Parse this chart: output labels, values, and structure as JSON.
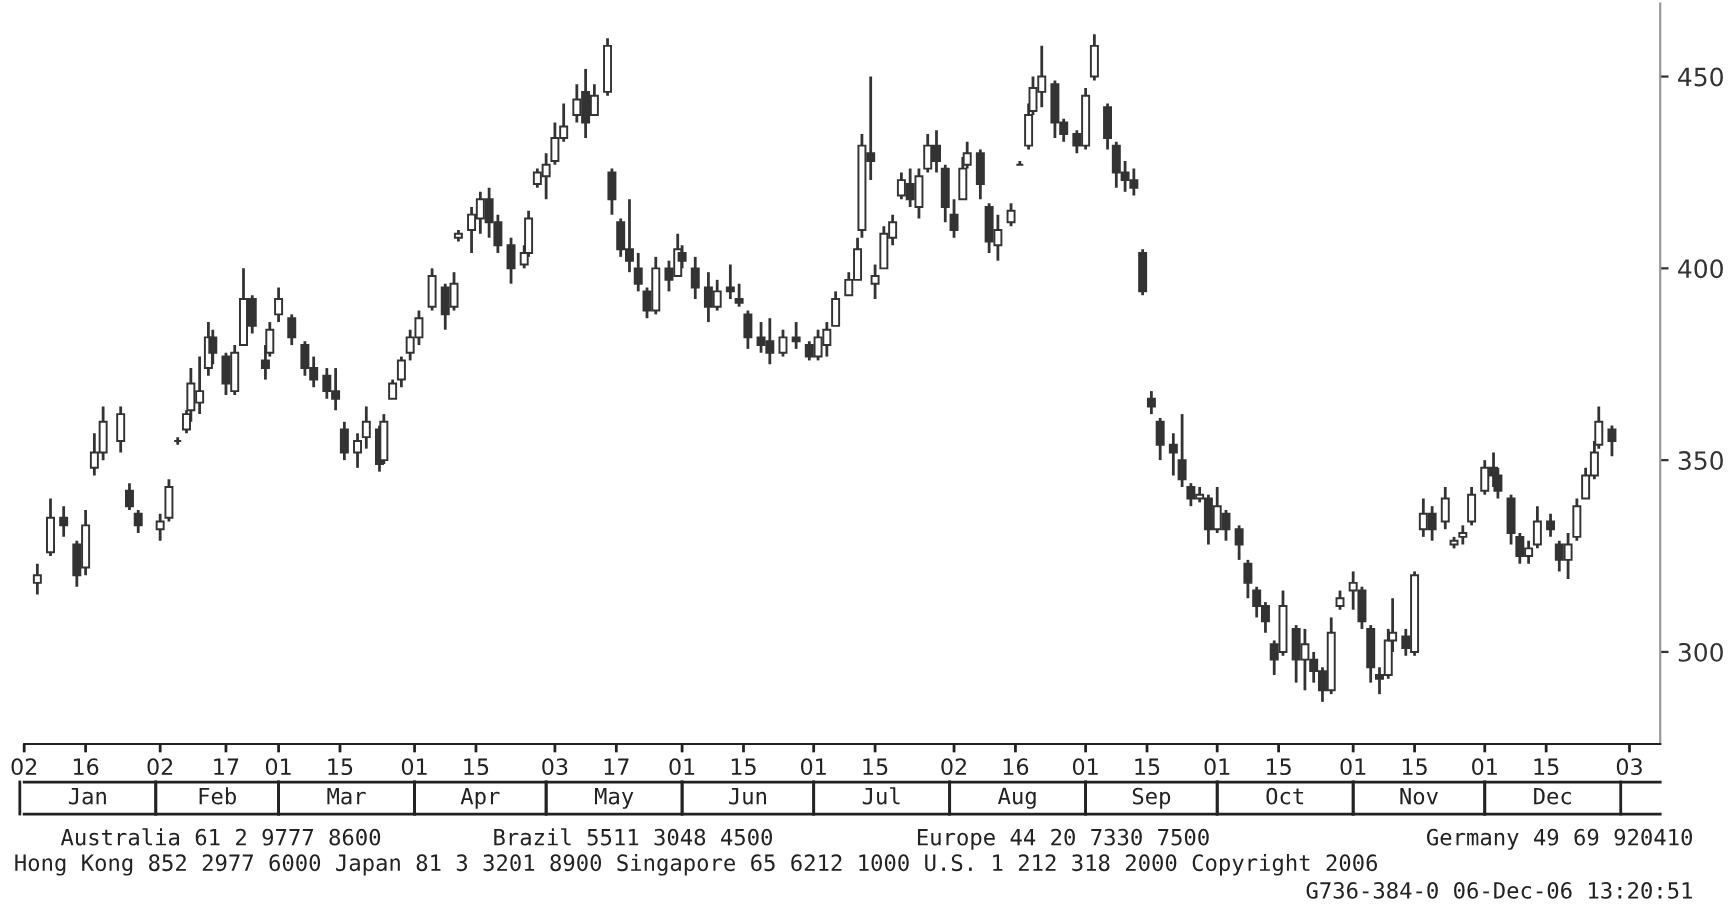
{
  "chart_data": {
    "type": "candlestick",
    "x": [
      "2006-01-05",
      "2006-01-08",
      "2006-01-11",
      "2006-01-14",
      "2006-01-16",
      "2006-01-18",
      "2006-01-20",
      "2006-01-24",
      "2006-01-26",
      "2006-01-28",
      "2006-02-02",
      "2006-02-04",
      "2006-02-06",
      "2006-02-08",
      "2006-02-09",
      "2006-02-11",
      "2006-02-13",
      "2006-02-14",
      "2006-02-17",
      "2006-02-19",
      "2006-02-21",
      "2006-02-23",
      "2006-02-26",
      "2006-02-27",
      "2006-03-01",
      "2006-03-04",
      "2006-03-07",
      "2006-03-09",
      "2006-03-12",
      "2006-03-14",
      "2006-03-16",
      "2006-03-19",
      "2006-03-21",
      "2006-03-24",
      "2006-03-25",
      "2006-03-27",
      "2006-03-29",
      "2006-03-31",
      "2006-04-02",
      "2006-04-05",
      "2006-04-08",
      "2006-04-10",
      "2006-04-11",
      "2006-04-14",
      "2006-04-16",
      "2006-04-18",
      "2006-04-20",
      "2006-04-23",
      "2006-04-26",
      "2006-04-27",
      "2006-04-29",
      "2006-05-01",
      "2006-05-03",
      "2006-05-05",
      "2006-05-08",
      "2006-05-10",
      "2006-05-12",
      "2006-05-15",
      "2006-05-16",
      "2006-05-18",
      "2006-05-20",
      "2006-05-22",
      "2006-05-24",
      "2006-05-26",
      "2006-05-29",
      "2006-05-31",
      "2006-06-01",
      "2006-06-04",
      "2006-06-07",
      "2006-06-09",
      "2006-06-12",
      "2006-06-14",
      "2006-06-16",
      "2006-06-19",
      "2006-06-21",
      "2006-06-24",
      "2006-06-27",
      "2006-06-30",
      "2006-07-02",
      "2006-07-04",
      "2006-07-06",
      "2006-07-09",
      "2006-07-11",
      "2006-07-12",
      "2006-07-14",
      "2006-07-15",
      "2006-07-17",
      "2006-07-19",
      "2006-07-21",
      "2006-07-23",
      "2006-07-25",
      "2006-07-27",
      "2006-07-29",
      "2006-07-31",
      "2006-08-02",
      "2006-08-04",
      "2006-08-05",
      "2006-08-08",
      "2006-08-10",
      "2006-08-12",
      "2006-08-15",
      "2006-08-17",
      "2006-08-19",
      "2006-08-20",
      "2006-08-22",
      "2006-08-25",
      "2006-08-27",
      "2006-08-30",
      "2006-09-01",
      "2006-09-03",
      "2006-09-06",
      "2006-09-08",
      "2006-09-10",
      "2006-09-12",
      "2006-09-14",
      "2006-09-16",
      "2006-09-18",
      "2006-09-21",
      "2006-09-23",
      "2006-09-25",
      "2006-09-27",
      "2006-09-29",
      "2006-10-01",
      "2006-10-03",
      "2006-10-06",
      "2006-10-08",
      "2006-10-10",
      "2006-10-12",
      "2006-10-14",
      "2006-10-16",
      "2006-10-19",
      "2006-10-21",
      "2006-10-23",
      "2006-10-25",
      "2006-10-27",
      "2006-10-29",
      "2006-11-01",
      "2006-11-03",
      "2006-11-05",
      "2006-11-07",
      "2006-11-09",
      "2006-11-10",
      "2006-11-13",
      "2006-11-15",
      "2006-11-17",
      "2006-11-19",
      "2006-11-22",
      "2006-11-24",
      "2006-11-26",
      "2006-11-28",
      "2006-12-01",
      "2006-12-03",
      "2006-12-04",
      "2006-12-07",
      "2006-12-09",
      "2006-12-11",
      "2006-12-13",
      "2006-12-16",
      "2006-12-18",
      "2006-12-20",
      "2006-12-22",
      "2006-12-24",
      "2006-12-26",
      "2006-12-27",
      "2006-12-30"
    ],
    "ohlc": [
      [
        318,
        323,
        315,
        320
      ],
      [
        326,
        340,
        325,
        335
      ],
      [
        335,
        338,
        330,
        333
      ],
      [
        328,
        329,
        317,
        320
      ],
      [
        322,
        337,
        320,
        333
      ],
      [
        348,
        357,
        346,
        352
      ],
      [
        352,
        364,
        350,
        360
      ],
      [
        355,
        364,
        352,
        362
      ],
      [
        342,
        344,
        337,
        338
      ],
      [
        336,
        337,
        331,
        333
      ],
      [
        332,
        336,
        329,
        334
      ],
      [
        335,
        345,
        334,
        343
      ],
      [
        355,
        356,
        354,
        355
      ],
      [
        358,
        363,
        357,
        362
      ],
      [
        363,
        374,
        360,
        370
      ],
      [
        365,
        377,
        362,
        368
      ],
      [
        374,
        386,
        372,
        382
      ],
      [
        382,
        384,
        375,
        378
      ],
      [
        377,
        378,
        367,
        370
      ],
      [
        368,
        380,
        367,
        378
      ],
      [
        380,
        400,
        380,
        392
      ],
      [
        392,
        393,
        383,
        385
      ],
      [
        376,
        380,
        371,
        374
      ],
      [
        378,
        386,
        377,
        384
      ],
      [
        388,
        395,
        386,
        392
      ],
      [
        387,
        388,
        380,
        382
      ],
      [
        380,
        381,
        372,
        374
      ],
      [
        374,
        377,
        369,
        371
      ],
      [
        372,
        374,
        366,
        368
      ],
      [
        368,
        374,
        363,
        366
      ],
      [
        358,
        360,
        350,
        352
      ],
      [
        352,
        357,
        348,
        355
      ],
      [
        356,
        364,
        353,
        360
      ],
      [
        358,
        359,
        347,
        349
      ],
      [
        350,
        362,
        349,
        360
      ],
      [
        366,
        371,
        366,
        370
      ],
      [
        371,
        377,
        369,
        376
      ],
      [
        378,
        384,
        376,
        382
      ],
      [
        382,
        389,
        380,
        387
      ],
      [
        390,
        400,
        389,
        398
      ],
      [
        395,
        396,
        384,
        388
      ],
      [
        390,
        399,
        389,
        396
      ],
      [
        408,
        410,
        407,
        409
      ],
      [
        410,
        416,
        404,
        414
      ],
      [
        413,
        420,
        409,
        418
      ],
      [
        418,
        421,
        408,
        412
      ],
      [
        412,
        414,
        404,
        406
      ],
      [
        406,
        408,
        396,
        400
      ],
      [
        401,
        406,
        400,
        404
      ],
      [
        404,
        415,
        403,
        413
      ],
      [
        422,
        426,
        421,
        425
      ],
      [
        424,
        430,
        418,
        427
      ],
      [
        428,
        438,
        427,
        434
      ],
      [
        434,
        443,
        433,
        437
      ],
      [
        440,
        448,
        438,
        444
      ],
      [
        446,
        452,
        434,
        438
      ],
      [
        440,
        448,
        440,
        445
      ],
      [
        446,
        460,
        445,
        458
      ],
      [
        425,
        426,
        414,
        418
      ],
      [
        412,
        413,
        403,
        405
      ],
      [
        405,
        418,
        399,
        402
      ],
      [
        400,
        404,
        394,
        396
      ],
      [
        394,
        395,
        387,
        389
      ],
      [
        389,
        403,
        388,
        400
      ],
      [
        400,
        402,
        394,
        397
      ],
      [
        398,
        409,
        398,
        405
      ],
      [
        404,
        406,
        400,
        402
      ],
      [
        400,
        403,
        392,
        395
      ],
      [
        395,
        399,
        386,
        390
      ],
      [
        390,
        397,
        389,
        394
      ],
      [
        395,
        401,
        392,
        394
      ],
      [
        392,
        396,
        390,
        391
      ],
      [
        388,
        389,
        379,
        382
      ],
      [
        382,
        386,
        378,
        380
      ],
      [
        381,
        387,
        375,
        378
      ],
      [
        378,
        384,
        377,
        382
      ],
      [
        382,
        386,
        379,
        381
      ],
      [
        380,
        381,
        376,
        377
      ],
      [
        377,
        384,
        376,
        382
      ],
      [
        380,
        386,
        377,
        384
      ],
      [
        385,
        394,
        385,
        392
      ],
      [
        393,
        399,
        393,
        397
      ],
      [
        397,
        408,
        397,
        405
      ],
      [
        410,
        435,
        408,
        432
      ],
      [
        430,
        450,
        423,
        428
      ],
      [
        396,
        401,
        392,
        398
      ],
      [
        400,
        411,
        400,
        409
      ],
      [
        408,
        414,
        406,
        412
      ],
      [
        419,
        425,
        418,
        423
      ],
      [
        422,
        426,
        416,
        418
      ],
      [
        416,
        426,
        413,
        424
      ],
      [
        426,
        435,
        425,
        432
      ],
      [
        432,
        436,
        425,
        428
      ],
      [
        426,
        427,
        412,
        416
      ],
      [
        414,
        418,
        408,
        410
      ],
      [
        418,
        429,
        418,
        426
      ],
      [
        427,
        433,
        426,
        430
      ],
      [
        430,
        431,
        418,
        422
      ],
      [
        416,
        417,
        404,
        407
      ],
      [
        406,
        414,
        402,
        410
      ],
      [
        412,
        417,
        411,
        415
      ],
      [
        427,
        428,
        427,
        427
      ],
      [
        432,
        443,
        431,
        440
      ],
      [
        441,
        450,
        440,
        447
      ],
      [
        446,
        458,
        442,
        450
      ],
      [
        448,
        449,
        434,
        438
      ],
      [
        438,
        439,
        433,
        435
      ],
      [
        435,
        436,
        430,
        432
      ],
      [
        432,
        447,
        431,
        445
      ],
      [
        450,
        461,
        449,
        458
      ],
      [
        442,
        443,
        431,
        434
      ],
      [
        432,
        433,
        421,
        425
      ],
      [
        425,
        428,
        420,
        423
      ],
      [
        423,
        426,
        419,
        421
      ],
      [
        404,
        405,
        393,
        394
      ],
      [
        366,
        368,
        362,
        364
      ],
      [
        360,
        361,
        350,
        354
      ],
      [
        354,
        357,
        346,
        352
      ],
      [
        350,
        362,
        343,
        345
      ],
      [
        343,
        344,
        338,
        340
      ],
      [
        340,
        343,
        339,
        341
      ],
      [
        340,
        341,
        328,
        332
      ],
      [
        332,
        343,
        331,
        338
      ],
      [
        336,
        337,
        329,
        332
      ],
      [
        332,
        333,
        324,
        328
      ],
      [
        323,
        324,
        314,
        318
      ],
      [
        316,
        317,
        309,
        312
      ],
      [
        312,
        313,
        305,
        308
      ],
      [
        302,
        303,
        294,
        298
      ],
      [
        300,
        316,
        299,
        312
      ],
      [
        306,
        307,
        292,
        298
      ],
      [
        298,
        306,
        290,
        302
      ],
      [
        298,
        300,
        292,
        295
      ],
      [
        295,
        296,
        287,
        290
      ],
      [
        290,
        309,
        289,
        305
      ],
      [
        312,
        316,
        311,
        314
      ],
      [
        316,
        321,
        311,
        318
      ],
      [
        316,
        317,
        306,
        308
      ],
      [
        306,
        307,
        292,
        296
      ],
      [
        294,
        296,
        289,
        293
      ],
      [
        294,
        306,
        293,
        303
      ],
      [
        303,
        314,
        300,
        305
      ],
      [
        304,
        306,
        299,
        301
      ],
      [
        300,
        321,
        299,
        320
      ],
      [
        332,
        340,
        330,
        336
      ],
      [
        336,
        338,
        329,
        332
      ],
      [
        334,
        343,
        332,
        340
      ],
      [
        328,
        330,
        327,
        329
      ],
      [
        330,
        333,
        328,
        331
      ],
      [
        334,
        343,
        333,
        341
      ],
      [
        342,
        350,
        341,
        348
      ],
      [
        348,
        352,
        343,
        346
      ],
      [
        346,
        348,
        340,
        342
      ],
      [
        340,
        341,
        328,
        331
      ],
      [
        330,
        331,
        323,
        325
      ],
      [
        325,
        329,
        323,
        327
      ],
      [
        328,
        338,
        327,
        334
      ],
      [
        334,
        336,
        330,
        332
      ],
      [
        328,
        329,
        321,
        324
      ],
      [
        324,
        331,
        319,
        328
      ],
      [
        330,
        340,
        329,
        338
      ],
      [
        340,
        348,
        340,
        346
      ],
      [
        346,
        355,
        345,
        352
      ],
      [
        354,
        364,
        353,
        360
      ],
      [
        358,
        359,
        351,
        355
      ]
    ],
    "color": "#333333",
    "xlim": [
      "2006-01-02",
      "2007-01-10"
    ],
    "xticks": [
      {
        "value": "2006-01-02",
        "label": "02"
      },
      {
        "value": "2006-01-16",
        "label": "16"
      },
      {
        "value": "2006-02-02",
        "label": "02"
      },
      {
        "value": "2006-02-17",
        "label": "17"
      },
      {
        "value": "2006-03-01",
        "label": "01"
      },
      {
        "value": "2006-03-15",
        "label": "15"
      },
      {
        "value": "2006-04-01",
        "label": "01"
      },
      {
        "value": "2006-04-15",
        "label": "15"
      },
      {
        "value": "2006-05-03",
        "label": "03"
      },
      {
        "value": "2006-05-17",
        "label": "17"
      },
      {
        "value": "2006-06-01",
        "label": "01"
      },
      {
        "value": "2006-06-15",
        "label": "15"
      },
      {
        "value": "2006-07-01",
        "label": "01"
      },
      {
        "value": "2006-07-15",
        "label": "15"
      },
      {
        "value": "2006-08-02",
        "label": "02"
      },
      {
        "value": "2006-08-16",
        "label": "16"
      },
      {
        "value": "2006-09-01",
        "label": "01"
      },
      {
        "value": "2006-09-15",
        "label": "15"
      },
      {
        "value": "2006-10-01",
        "label": "01"
      },
      {
        "value": "2006-10-15",
        "label": "15"
      },
      {
        "value": "2006-11-01",
        "label": "01"
      },
      {
        "value": "2006-11-15",
        "label": "15"
      },
      {
        "value": "2006-12-01",
        "label": "01"
      },
      {
        "value": "2006-12-15",
        "label": "15"
      },
      {
        "value": "2007-01-03",
        "label": "03"
      }
    ],
    "ylim": [
      276,
      469
    ],
    "yticks": [
      300,
      350,
      400,
      450
    ],
    "grid": false,
    "annotations": [
      "Jan",
      "Feb",
      "Mar",
      "Apr",
      "May",
      "Jun",
      "Jul",
      "Aug",
      "Sep",
      "Oct",
      "Nov",
      "Dec",
      "Australia 61 2 9777 8600",
      "Brazil 5511 3048 4500",
      "Europe 44 20 7330 7500",
      "Germany 49 69 920410",
      "Hong Kong 852 2977 6000 Japan 81 3 3201 8900 Singapore 65 6212 1000 U.S. 1 212 318 2000 Copyright 2006",
      "G736-384-0 06-Dec-06 13:20:51"
    ]
  }
}
